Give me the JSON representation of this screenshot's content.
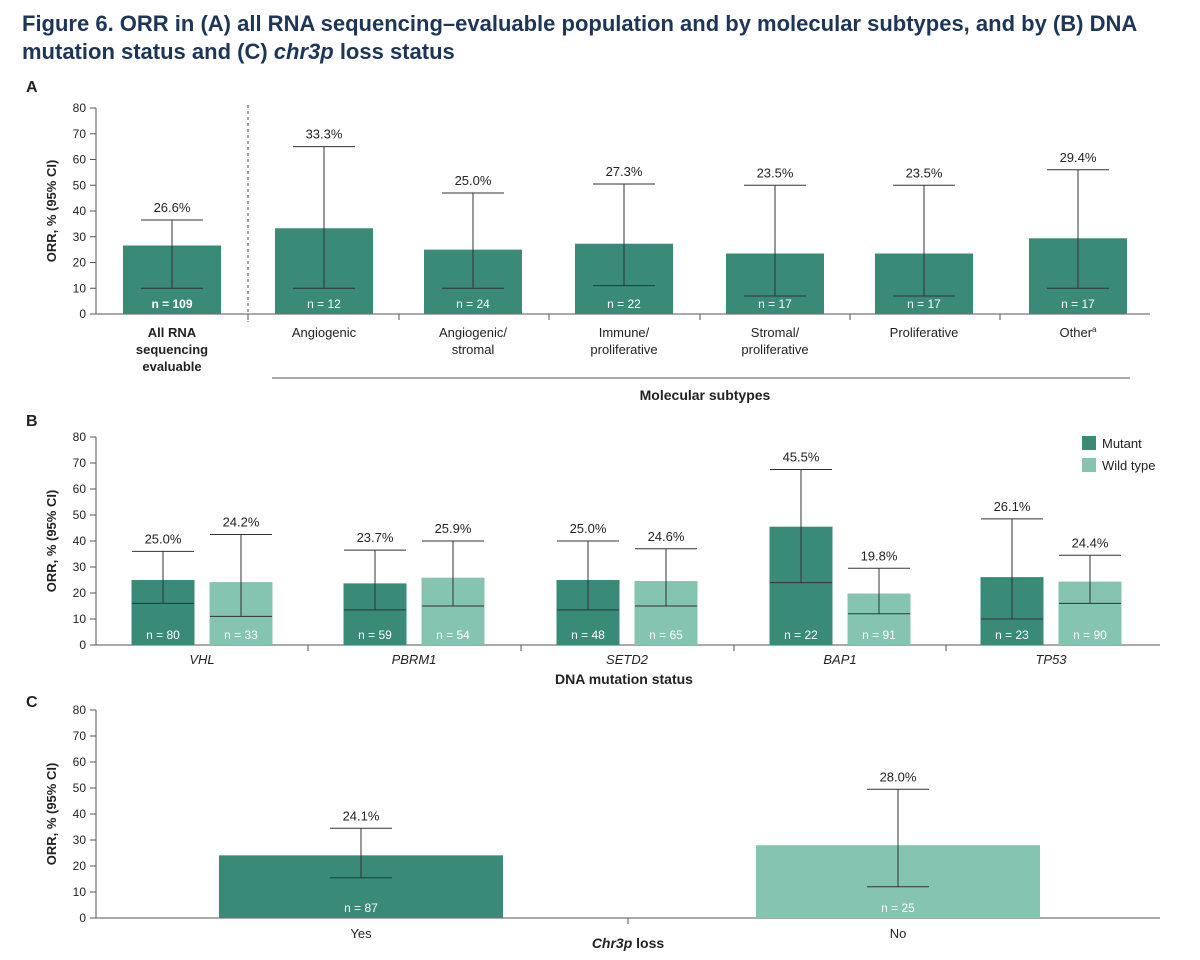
{
  "figure": {
    "title_pre": "Figure 6. ORR in (A) all RNA sequencing–evaluable population and by molecular subtypes, and by (B) DNA mutation status and (C) ",
    "title_italic": "chr3p",
    "title_post": " loss status"
  },
  "colors": {
    "mutant": "#3a8a78",
    "wild_type": "#85c4b0",
    "axis": "#555555",
    "text": "#222222"
  },
  "chart_data": [
    {
      "panel": "A",
      "type": "bar",
      "ylabel": "ORR, % (95% CI)",
      "ylim": [
        0,
        80
      ],
      "yticks": [
        0,
        10,
        20,
        30,
        40,
        50,
        60,
        70,
        80
      ],
      "group_label": "Molecular subtypes",
      "categories": [
        {
          "label": [
            "All RNA",
            "sequencing",
            "evaluable"
          ],
          "bold": true,
          "value": 26.6,
          "ci": [
            10,
            36.5
          ],
          "value_label": "26.6%",
          "n_label": "n = 109"
        },
        {
          "label": [
            "Angiogenic"
          ],
          "value": 33.3,
          "ci": [
            10,
            65
          ],
          "value_label": "33.3%",
          "n_label": "n = 12"
        },
        {
          "label": [
            "Angiogenic/",
            "stromal"
          ],
          "value": 25.0,
          "ci": [
            10,
            47
          ],
          "value_label": "25.0%",
          "n_label": "n = 24"
        },
        {
          "label": [
            "Immune/",
            "proliferative"
          ],
          "value": 27.3,
          "ci": [
            11,
            50.5
          ],
          "value_label": "27.3%",
          "n_label": "n = 22"
        },
        {
          "label": [
            "Stromal/",
            "proliferative"
          ],
          "value": 23.5,
          "ci": [
            7,
            50
          ],
          "value_label": "23.5%",
          "n_label": "n = 17"
        },
        {
          "label": [
            "Proliferative"
          ],
          "value": 23.5,
          "ci": [
            7,
            50
          ],
          "value_label": "23.5%",
          "n_label": "n = 17"
        },
        {
          "label": [
            "Other"
          ],
          "sup": "a",
          "value": 29.4,
          "ci": [
            10,
            56
          ],
          "value_label": "29.4%",
          "n_label": "n = 17"
        }
      ]
    },
    {
      "panel": "B",
      "type": "bar",
      "ylabel": "ORR, % (95% CI)",
      "xlabel": "DNA mutation status",
      "ylim": [
        0,
        80
      ],
      "yticks": [
        0,
        10,
        20,
        30,
        40,
        50,
        60,
        70,
        80
      ],
      "legend": [
        {
          "name": "Mutant",
          "color": "#3a8a78"
        },
        {
          "name": "Wild type",
          "color": "#85c4b0"
        }
      ],
      "legend_position": "top-right",
      "categories": [
        "VHL",
        "PBRM1",
        "SETD2",
        "BAP1",
        "TP53"
      ],
      "series": [
        {
          "name": "Mutant",
          "values": [
            25.0,
            23.7,
            25.0,
            45.5,
            26.1
          ],
          "ci": [
            [
              16,
              36
            ],
            [
              13.5,
              36.5
            ],
            [
              13.5,
              40
            ],
            [
              24,
              67.5
            ],
            [
              10,
              48.5
            ]
          ],
          "value_labels": [
            "25.0%",
            "23.7%",
            "25.0%",
            "45.5%",
            "26.1%"
          ],
          "n_labels": [
            "n = 80",
            "n = 59",
            "n = 48",
            "n = 22",
            "n = 23"
          ]
        },
        {
          "name": "Wild type",
          "values": [
            24.2,
            25.9,
            24.6,
            19.8,
            24.4
          ],
          "ci": [
            [
              11,
              42.5
            ],
            [
              15,
              40
            ],
            [
              15,
              37
            ],
            [
              12,
              29.5
            ],
            [
              16,
              34.5
            ]
          ],
          "value_labels": [
            "24.2%",
            "25.9%",
            "24.6%",
            "19.8%",
            "24.4%"
          ],
          "n_labels": [
            "n = 33",
            "n = 54",
            "n = 65",
            "n = 91",
            "n = 90"
          ]
        }
      ]
    },
    {
      "panel": "C",
      "type": "bar",
      "ylabel": "ORR, % (95% CI)",
      "xlabel_italic": "Chr3p",
      "xlabel_rest": " loss",
      "ylim": [
        0,
        80
      ],
      "yticks": [
        0,
        10,
        20,
        30,
        40,
        50,
        60,
        70,
        80
      ],
      "categories": [
        {
          "label": "Yes",
          "value": 24.1,
          "ci": [
            15.5,
            34.5
          ],
          "value_label": "24.1%",
          "n_label": "n = 87",
          "color": "#3a8a78"
        },
        {
          "label": "No",
          "value": 28.0,
          "ci": [
            12,
            49.5
          ],
          "value_label": "28.0%",
          "n_label": "n = 25",
          "color": "#85c4b0"
        }
      ]
    }
  ]
}
